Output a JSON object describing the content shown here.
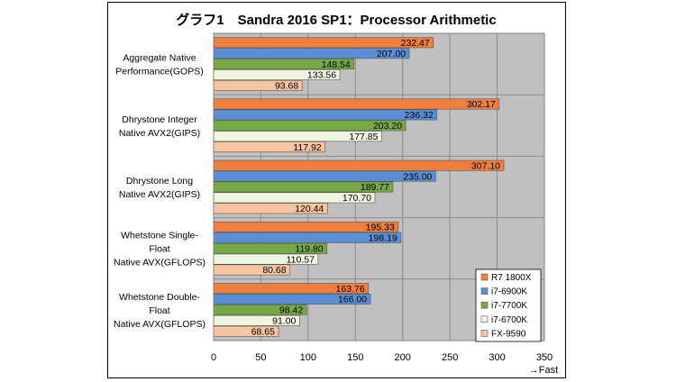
{
  "chart_data": {
    "type": "bar",
    "orientation": "horizontal",
    "title": "グラフ1　Sandra 2016 SP1：Processor Arithmetic",
    "xlabel": "→Fast",
    "xlim": [
      0,
      350
    ],
    "xticks": [
      0,
      50,
      100,
      150,
      200,
      250,
      300,
      350
    ],
    "grid": true,
    "legend_position": "bottom-right",
    "categories": [
      [
        "Aggregate Native",
        "Performance(GOPS)"
      ],
      [
        "Dhrystone Integer",
        "Native AVX2(GIPS)"
      ],
      [
        "Dhrystone Long",
        "Native AVX2(GIPS)"
      ],
      [
        "Whetstone Single-",
        "Float",
        "Native AVX(GFLOPS)"
      ],
      [
        "Whetstone Double-",
        "Float",
        "Native AVX(GFLOPS)"
      ]
    ],
    "series": [
      {
        "name": "R7 1800X",
        "color": "#f07e3c",
        "values": [
          232.47,
          302.17,
          307.1,
          195.33,
          163.76
        ]
      },
      {
        "name": "i7-6900K",
        "color": "#5a8fd5",
        "values": [
          207.0,
          236.32,
          235.0,
          198.19,
          166.0
        ]
      },
      {
        "name": "i7-7700K",
        "color": "#76a944",
        "values": [
          148.54,
          203.2,
          189.77,
          119.8,
          98.42
        ]
      },
      {
        "name": "i7-6700K",
        "color": "#eef6e2",
        "values": [
          133.56,
          177.85,
          170.7,
          110.57,
          91.0
        ]
      },
      {
        "name": "FX-9590",
        "color": "#f9c4a0",
        "values": [
          93.68,
          117.92,
          120.44,
          80.68,
          68.65
        ]
      }
    ]
  }
}
